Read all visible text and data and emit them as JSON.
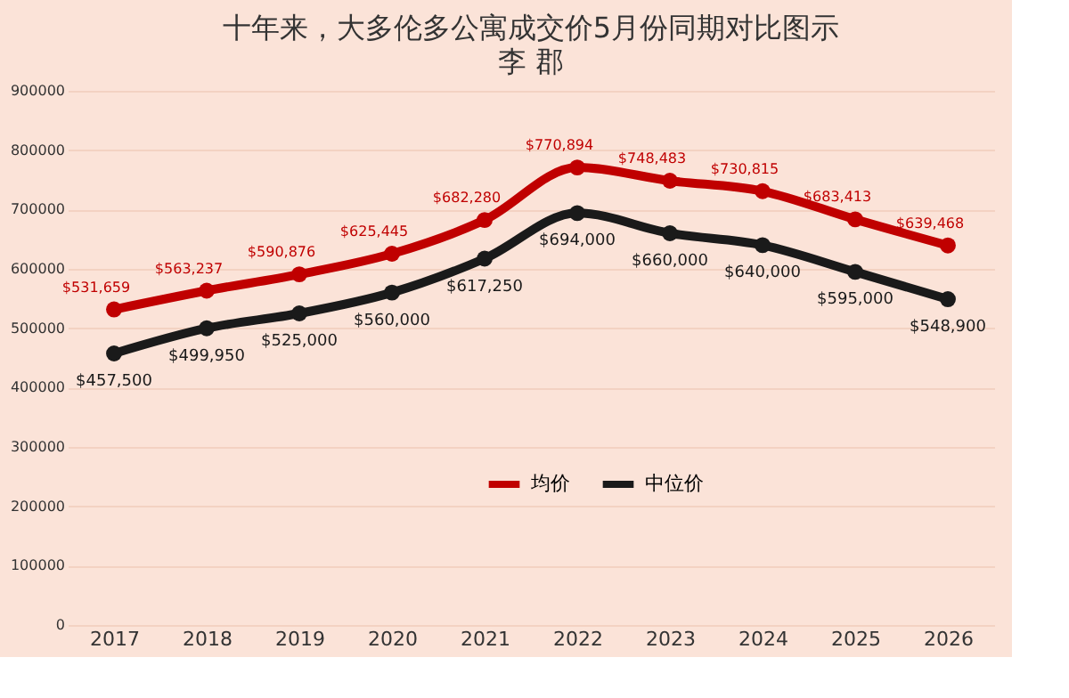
{
  "chart_data": {
    "type": "line",
    "title": "十年来，大多伦多公寓成交价5月份同期对比图示",
    "subtitle": "李 郡",
    "categories": [
      "2017",
      "2018",
      "2019",
      "2020",
      "2021",
      "2022",
      "2023",
      "2024",
      "2025",
      "2026"
    ],
    "series": [
      {
        "name": "均价",
        "color": "#c00000",
        "values": [
          531659,
          563237,
          590876,
          625445,
          682280,
          770894,
          748483,
          730815,
          683413,
          639468
        ],
        "value_labels": [
          "$531,659",
          "$563,237",
          "$590,876",
          "$625,445",
          "$682,280",
          "$770,894",
          "$748,483",
          "$730,815",
          "$683,413",
          "$639,468"
        ]
      },
      {
        "name": "中位价",
        "color": "#1a1a1a",
        "values": [
          457500,
          499950,
          525000,
          560000,
          617250,
          694000,
          660000,
          640000,
          595000,
          548900
        ],
        "value_labels": [
          "$457,500",
          "$499,950",
          "$525,000",
          "$560,000",
          "$617,250",
          "$694,000",
          "$660,000",
          "$640,000",
          "$595,000",
          "$548,900"
        ]
      }
    ],
    "ylim": [
      0,
      900000
    ],
    "yticks": [
      0,
      100000,
      200000,
      300000,
      400000,
      500000,
      600000,
      700000,
      800000,
      900000
    ],
    "grid": "y",
    "legend": "center",
    "marker": "circle",
    "line_style": "solid"
  }
}
